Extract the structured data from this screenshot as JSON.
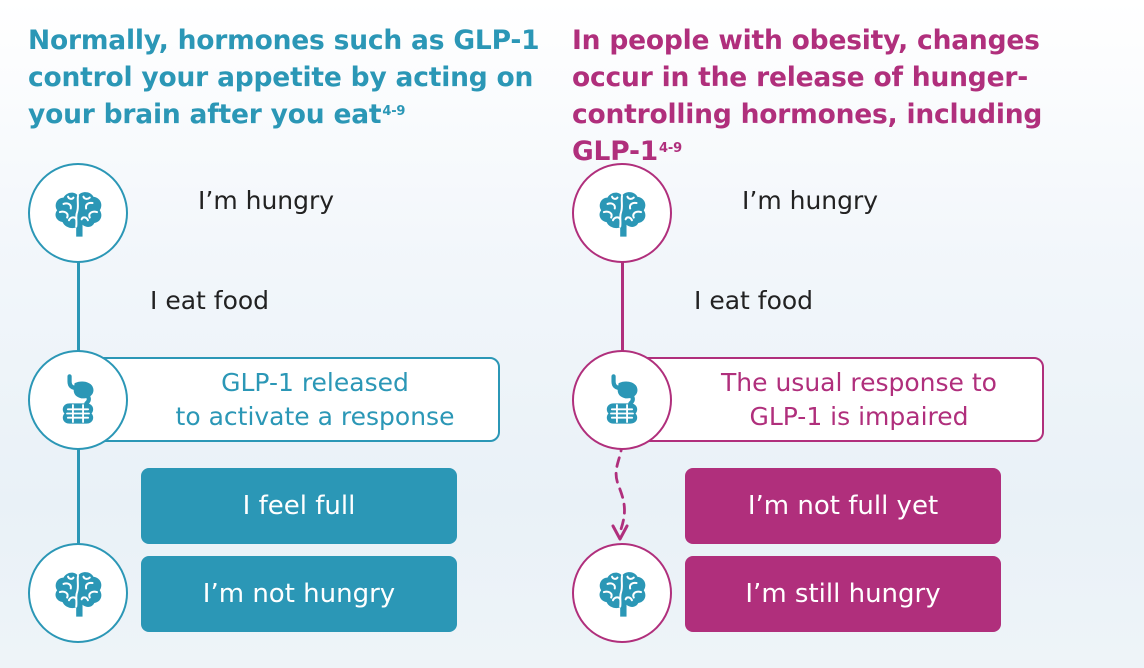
{
  "left": {
    "heading": "Normally, hormones such as GLP-1 control your appetite by acting on your brain after you eat",
    "heading_superscript": "4-9",
    "step_hungry": "I’m hungry",
    "step_eat": "I eat food",
    "glp1_box_line1": "GLP-1 released",
    "glp1_box_line2": "to activate a response",
    "result_full": "I feel full",
    "result_hunger": "I’m not hungry",
    "icons": [
      "brain-icon",
      "digestive-system-icon",
      "brain-icon"
    ]
  },
  "right": {
    "heading": "In people with obesity, changes occur in the release of hunger-controlling hormones, including GLP-1",
    "heading_superscript": "4-9",
    "step_hungry": "I’m hungry",
    "step_eat": "I eat food",
    "glp1_box_line1": "The usual response to",
    "glp1_box_line2": "GLP-1 is impaired",
    "result_full": "I’m not full yet",
    "result_hunger": "I’m still hungry",
    "icons": [
      "brain-icon",
      "digestive-system-icon",
      "brain-icon"
    ]
  },
  "colors": {
    "teal": "#2b97b6",
    "magenta": "#b02f7c",
    "text_dark": "#222222"
  }
}
